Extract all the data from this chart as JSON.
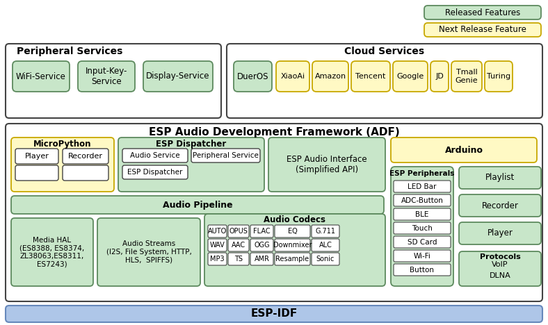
{
  "bg_color": "#ffffff",
  "green_fill": "#c8e6c9",
  "green_border": "#5d8a5e",
  "yellow_fill": "#fff9c4",
  "yellow_border": "#c8a800",
  "blue_fill": "#aec6e8",
  "blue_border": "#6688bb",
  "white_fill": "#ffffff",
  "dark_border": "#444444",
  "legend_green_text": "Released Features",
  "legend_yellow_text": "Next Release Feature",
  "peripheral_title": "Peripheral Services",
  "cloud_title": "Cloud Services",
  "adf_title": "ESP Audio Development Framework (ADF)",
  "esp_idf_text": "ESP-IDF",
  "micropython_title": "MicroPython",
  "esp_dispatcher_title": "ESP Dispatcher",
  "esp_audio_interface_text": "ESP Audio Interface\n(Simplified API)",
  "arduino_text": "Arduino",
  "audio_pipeline_text": "Audio Pipeline",
  "media_hal_text": "Media HAL\n(ES8388, ES8374,\nZL38063,ES8311,\nES7243)",
  "audio_streams_text": "Audio Streams\n(I2S, File System, HTTP,\nHLS,  SPIFFS)",
  "audio_codecs_title": "Audio Codecs",
  "audio_codecs_row1": [
    "AUTO",
    "OPUS",
    "FLAC",
    "EQ",
    "G.711"
  ],
  "audio_codecs_row2": [
    "WAV",
    "AAC",
    "OGG",
    "Downmixer",
    "ALC"
  ],
  "audio_codecs_row3": [
    "MP3",
    "TS",
    "AMR",
    "Resample",
    "Sonic"
  ],
  "esp_peripherals_title": "ESP Peripherals",
  "esp_peripherals_items": [
    "LED Bar",
    "ADC-Button",
    "BLE",
    "Touch",
    "SD Card",
    "Wi-Fi",
    "Button"
  ],
  "arduino_items_green": [
    "Playlist",
    "Recorder",
    "Player"
  ],
  "protocols_title": "Protocols",
  "protocols_items": [
    "VoIP",
    "DLNA"
  ]
}
